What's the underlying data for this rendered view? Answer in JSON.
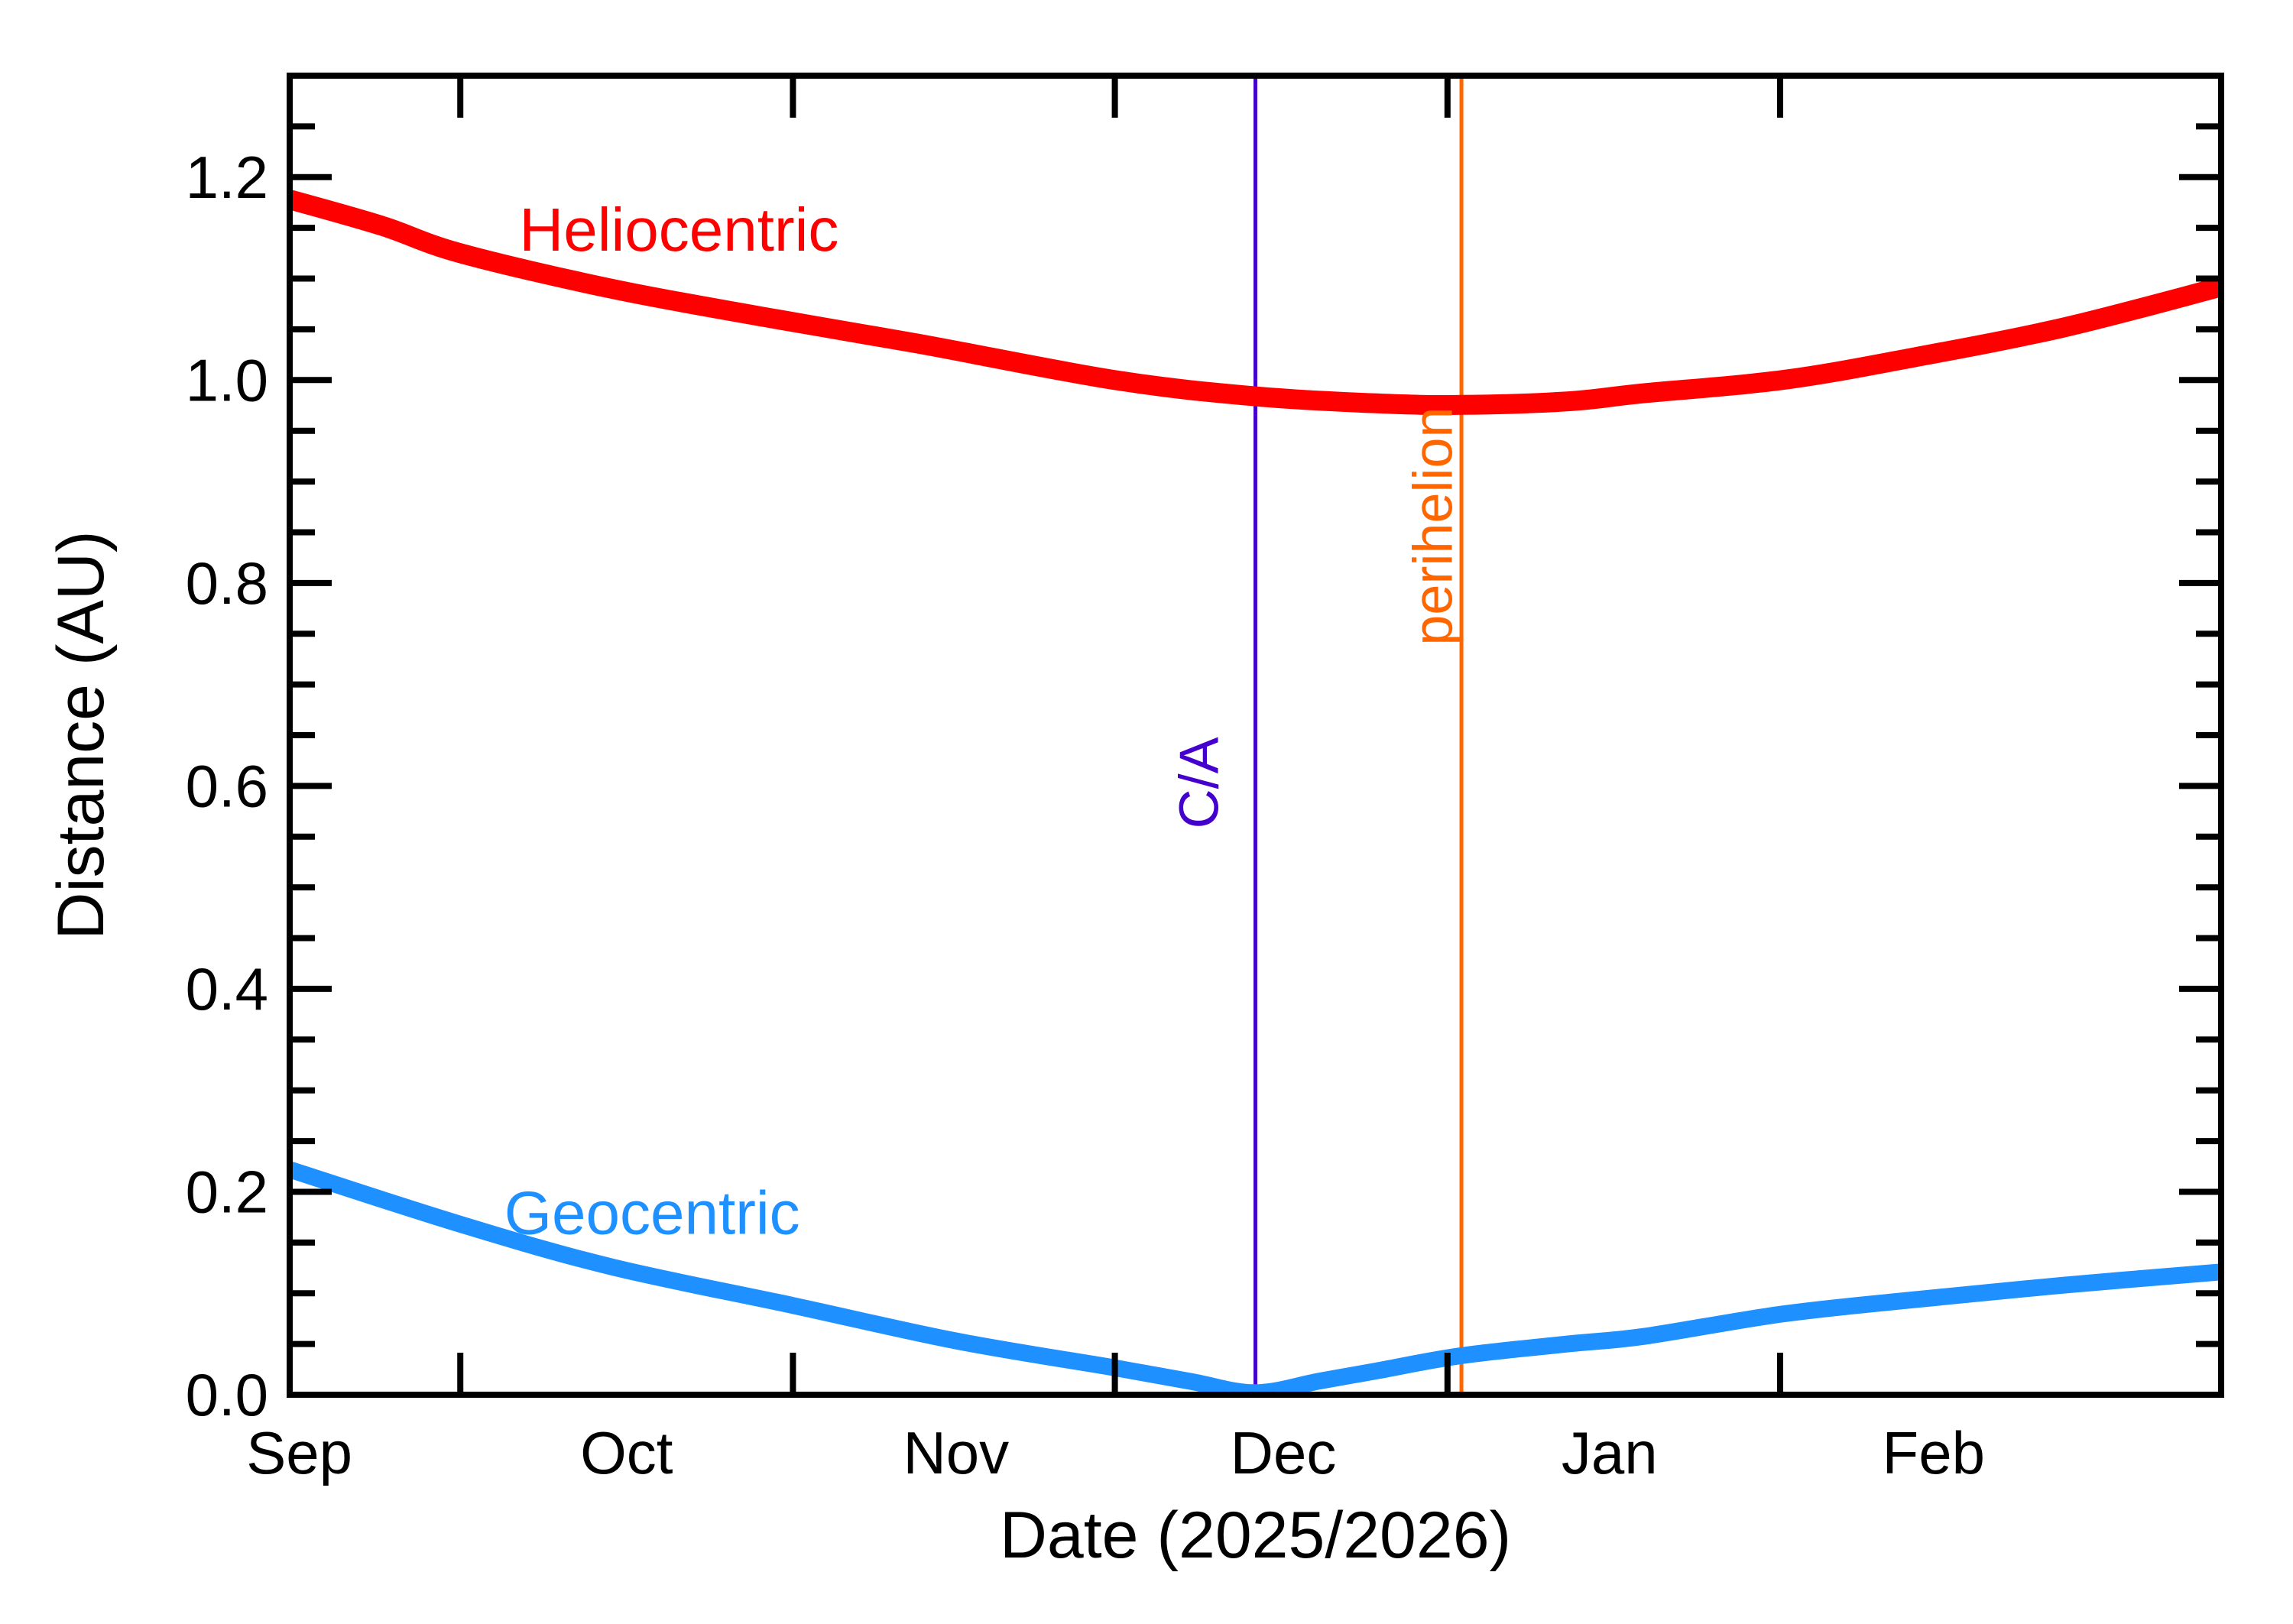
{
  "chart_data": {
    "type": "line",
    "title": "",
    "xlabel": "Date (2025/2026)",
    "ylabel": "Distance (AU)",
    "background": "#ffffff",
    "frame_color": "#000000",
    "grid": false,
    "x_axis": {
      "start_date": "2025-09-15",
      "end_date": "2026-03-14",
      "span_days": 180,
      "tick_unit": "month-start",
      "months": [
        {
          "label": "Sep",
          "tick_day": null,
          "label_day": 0.9
        },
        {
          "label": "Oct",
          "tick_day": 15.9,
          "label_day": 31.4
        },
        {
          "label": "Nov",
          "tick_day": 46.9,
          "label_day": 62.1
        },
        {
          "label": "Dec",
          "tick_day": 76.9,
          "label_day": 92.6
        },
        {
          "label": "Jan",
          "tick_day": 107.9,
          "label_day": 123.0
        },
        {
          "label": "Feb",
          "tick_day": 138.9,
          "label_day": 153.2
        }
      ]
    },
    "y_axis": {
      "min": 0,
      "max": 1.3,
      "major_step": 0.2,
      "minor_step": 0.05,
      "major_labels": [
        "0.0",
        "0.2",
        "0.4",
        "0.6",
        "0.8",
        "1.0",
        "1.2"
      ]
    },
    "series": [
      {
        "name": "Heliocentric",
        "color": "#ff0000",
        "label_anchor": {
          "day": 21.4,
          "au": 1.148
        },
        "points": [
          [
            0,
            1.178
          ],
          [
            8.6,
            1.152
          ],
          [
            15.9,
            1.125
          ],
          [
            30,
            1.09
          ],
          [
            44.3,
            1.062
          ],
          [
            58.5,
            1.036
          ],
          [
            76.9,
            1.0
          ],
          [
            90,
            0.984
          ],
          [
            101.3,
            0.977
          ],
          [
            109.2,
            0.9755
          ],
          [
            119.1,
            0.979
          ],
          [
            126.2,
            0.987
          ],
          [
            139.1,
            1.0
          ],
          [
            151.2,
            1.022
          ],
          [
            165.4,
            1.052
          ],
          [
            180,
            1.092
          ]
        ]
      },
      {
        "name": "Geocentric",
        "color": "#1e90ff",
        "label_anchor": {
          "day": 20.0,
          "au": 0.179
        },
        "points": [
          [
            0,
            0.222
          ],
          [
            15.9,
            0.168
          ],
          [
            30,
            0.126
          ],
          [
            46.9,
            0.088
          ],
          [
            62.1,
            0.053
          ],
          [
            76.9,
            0.0265
          ],
          [
            84,
            0.013
          ],
          [
            90,
            0.002
          ],
          [
            96,
            0.0135
          ],
          [
            101.3,
            0.0235
          ],
          [
            109.2,
            0.0385
          ],
          [
            119.1,
            0.05
          ],
          [
            126.2,
            0.0575
          ],
          [
            139.1,
            0.0795
          ],
          [
            151.2,
            0.0935
          ],
          [
            165.4,
            0.108
          ],
          [
            180,
            0.121
          ]
        ]
      }
    ],
    "event_lines": [
      {
        "label": "C/A",
        "day": 90.0,
        "color": "#4400cc",
        "label_anchor": {
          "day": 84.8,
          "au": 0.603
        }
      },
      {
        "label": "perihelion",
        "day": 109.2,
        "color": "#ff6600",
        "label_anchor": {
          "day": 106.6,
          "au": 0.856
        }
      }
    ]
  }
}
